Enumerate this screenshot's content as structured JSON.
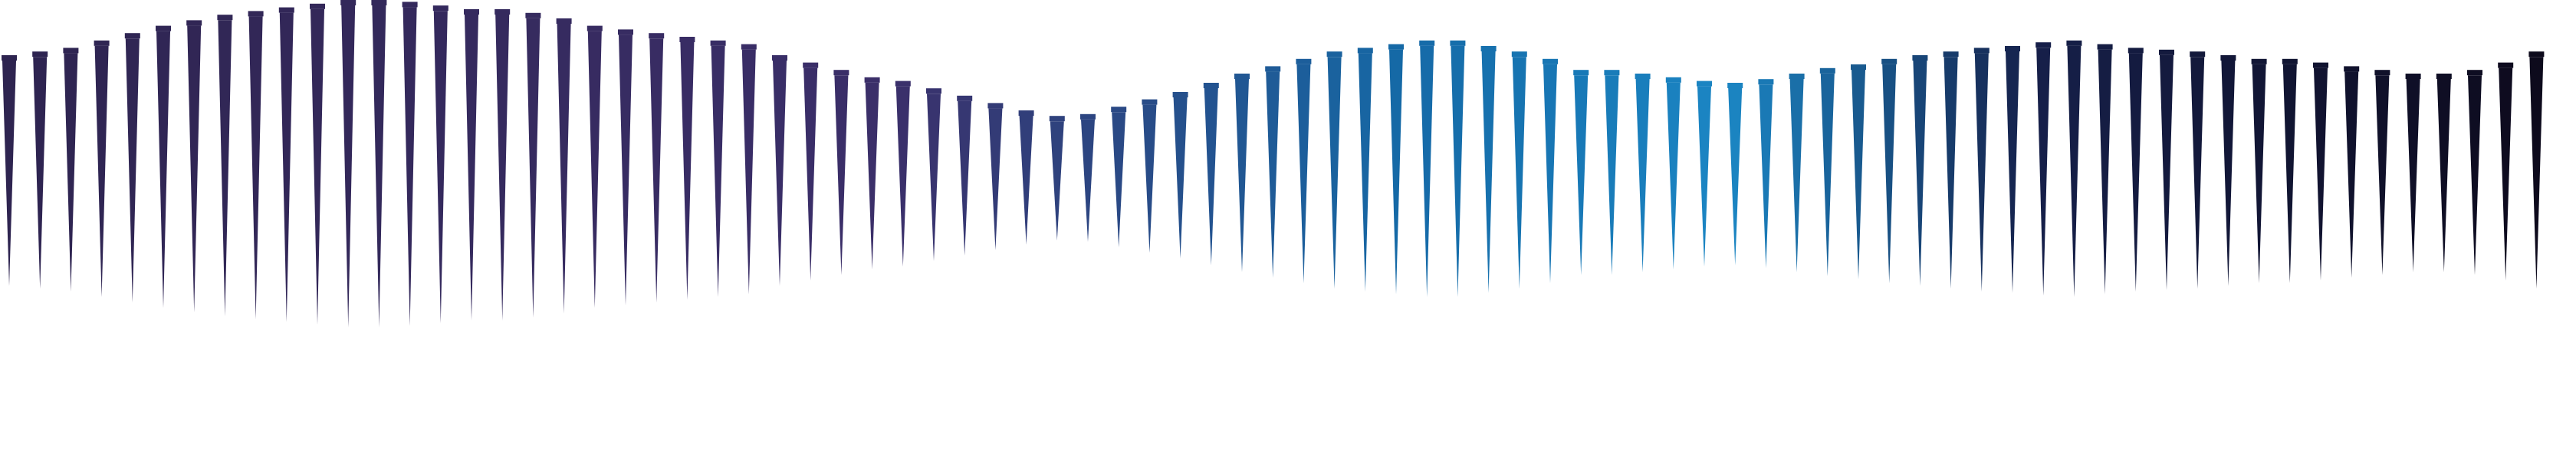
{
  "title": "",
  "palette": {
    "background": "#ffffff",
    "dark_purple": "#2e2450",
    "purple": "#3b2f6a",
    "blue": "#1569a6",
    "light_blue": "#1b86c4",
    "navy": "#16204a",
    "near_black": "#0d0a1c"
  },
  "wave": {
    "count": 83,
    "levels": [
      0.7,
      0.72,
      0.74,
      0.78,
      0.82,
      0.86,
      0.89,
      0.92,
      0.94,
      0.96,
      0.98,
      1.0,
      1.0,
      0.99,
      0.97,
      0.95,
      0.95,
      0.93,
      0.9,
      0.86,
      0.84,
      0.82,
      0.8,
      0.78,
      0.76,
      0.7,
      0.66,
      0.62,
      0.58,
      0.56,
      0.52,
      0.48,
      0.44,
      0.4,
      0.37,
      0.38,
      0.42,
      0.46,
      0.5,
      0.55,
      0.6,
      0.64,
      0.68,
      0.72,
      0.74,
      0.76,
      0.78,
      0.78,
      0.75,
      0.72,
      0.68,
      0.62,
      0.62,
      0.6,
      0.58,
      0.56,
      0.55,
      0.57,
      0.6,
      0.63,
      0.65,
      0.68,
      0.7,
      0.72,
      0.74,
      0.75,
      0.77,
      0.78,
      0.76,
      0.74,
      0.73,
      0.72,
      0.7,
      0.68,
      0.68,
      0.66,
      0.64,
      0.62,
      0.6,
      0.6,
      0.62,
      0.66,
      0.72
    ]
  }
}
